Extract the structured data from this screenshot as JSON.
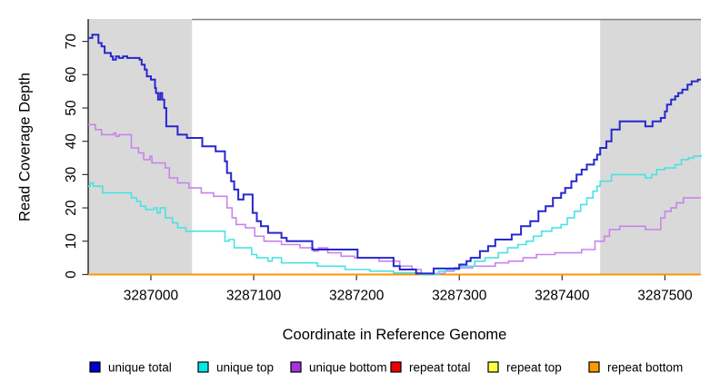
{
  "chart_data": {
    "type": "line",
    "subtype": "step-after",
    "title": "",
    "xlabel": "Coordinate in Reference Genome",
    "ylabel": "Read Coverage Depth",
    "xlim": [
      3286939,
      3287535
    ],
    "ylim": [
      0,
      76.7
    ],
    "x_ticks": [
      3287000,
      3287100,
      3287200,
      3287300,
      3287400,
      3287500
    ],
    "y_ticks": [
      0,
      10,
      20,
      30,
      40,
      50,
      60,
      70
    ],
    "grid": false,
    "legend_position": "bottom",
    "background_color": "#ffffff",
    "shaded_region_color": "#d9d9d9",
    "shaded_regions": [
      {
        "x1": 3286939,
        "x2": 3287040
      },
      {
        "x1": 3287437,
        "x2": 3287535
      }
    ],
    "top_border_segment": {
      "x1": 3287040,
      "x2": 3287535,
      "color": "#7f7f7f"
    },
    "series": [
      {
        "name": "repeat total",
        "color": "#ee0000",
        "legend_color": "#ee0000",
        "width": 1.6,
        "points": [
          [
            3286939,
            0
          ],
          [
            3287535,
            0
          ]
        ]
      },
      {
        "name": "repeat top",
        "color": "#ffee00",
        "legend_color": "#ffff44",
        "width": 1.6,
        "points": [
          [
            3286939,
            0
          ],
          [
            3287535,
            0
          ]
        ]
      },
      {
        "name": "repeat bottom",
        "color": "#ff9300",
        "legend_color": "#ff9900",
        "width": 1.8,
        "points": [
          [
            3286939,
            0
          ],
          [
            3287535,
            0
          ]
        ]
      },
      {
        "name": "unique bottom",
        "color": "#c884ec",
        "legend_color": "#a832dd",
        "width": 1.6,
        "points": [
          [
            3286939,
            45
          ],
          [
            3286946,
            43.5
          ],
          [
            3286952,
            42
          ],
          [
            3286964,
            42.5
          ],
          [
            3286966,
            41.5
          ],
          [
            3286969,
            42
          ],
          [
            3286981,
            38
          ],
          [
            3286988,
            36.5
          ],
          [
            3286993,
            34.5
          ],
          [
            3286999,
            35.5
          ],
          [
            3287001,
            33.5
          ],
          [
            3287014,
            32
          ],
          [
            3287018,
            29
          ],
          [
            3287026,
            27.5
          ],
          [
            3287037,
            26
          ],
          [
            3287049,
            24.5
          ],
          [
            3287061,
            23.5
          ],
          [
            3287074,
            20
          ],
          [
            3287079,
            17
          ],
          [
            3287083,
            15
          ],
          [
            3287092,
            14
          ],
          [
            3287101,
            11.5
          ],
          [
            3287110,
            10
          ],
          [
            3287127,
            9
          ],
          [
            3287145,
            8
          ],
          [
            3287158,
            7
          ],
          [
            3287163,
            8
          ],
          [
            3287172,
            6.5
          ],
          [
            3287185,
            5.5
          ],
          [
            3287198,
            5
          ],
          [
            3287222,
            4
          ],
          [
            3287242,
            2.5
          ],
          [
            3287254,
            1.5
          ],
          [
            3287263,
            0.3
          ],
          [
            3287286,
            1
          ],
          [
            3287295,
            2
          ],
          [
            3287313,
            2.5
          ],
          [
            3287335,
            3.5
          ],
          [
            3287348,
            4
          ],
          [
            3287362,
            5
          ],
          [
            3287375,
            6
          ],
          [
            3287393,
            6.5
          ],
          [
            3287419,
            7.5
          ],
          [
            3287432,
            10
          ],
          [
            3287441,
            11.5
          ],
          [
            3287446,
            13.5
          ],
          [
            3287456,
            14.5
          ],
          [
            3287481,
            13.5
          ],
          [
            3287496,
            17
          ],
          [
            3287500,
            19
          ],
          [
            3287506,
            20
          ],
          [
            3287511,
            21.5
          ],
          [
            3287518,
            23
          ],
          [
            3287535,
            23
          ]
        ]
      },
      {
        "name": "unique top",
        "color": "#4ae2e2",
        "legend_color": "#00e8e8",
        "width": 1.6,
        "points": [
          [
            3286939,
            26.5
          ],
          [
            3286941,
            27.5
          ],
          [
            3286944,
            26.5
          ],
          [
            3286953,
            24.5
          ],
          [
            3286981,
            23
          ],
          [
            3286986,
            22
          ],
          [
            3286990,
            20.5
          ],
          [
            3286995,
            19.5
          ],
          [
            3287003,
            20
          ],
          [
            3287006,
            18.5
          ],
          [
            3287009,
            20
          ],
          [
            3287014,
            17
          ],
          [
            3287021,
            15.5
          ],
          [
            3287026,
            14
          ],
          [
            3287034,
            13
          ],
          [
            3287072,
            10
          ],
          [
            3287076,
            10.5
          ],
          [
            3287081,
            8
          ],
          [
            3287098,
            6
          ],
          [
            3287103,
            5
          ],
          [
            3287114,
            4
          ],
          [
            3287118,
            5
          ],
          [
            3287127,
            3.5
          ],
          [
            3287162,
            2.5
          ],
          [
            3287189,
            1.5
          ],
          [
            3287213,
            1
          ],
          [
            3287236,
            0.5
          ],
          [
            3287262,
            0
          ],
          [
            3287280,
            1
          ],
          [
            3287287,
            1.5
          ],
          [
            3287300,
            2.5
          ],
          [
            3287315,
            4
          ],
          [
            3287325,
            5
          ],
          [
            3287338,
            6.5
          ],
          [
            3287347,
            8
          ],
          [
            3287357,
            9
          ],
          [
            3287365,
            10
          ],
          [
            3287372,
            11.5
          ],
          [
            3287380,
            13
          ],
          [
            3287390,
            14
          ],
          [
            3287399,
            15
          ],
          [
            3287405,
            17
          ],
          [
            3287412,
            19
          ],
          [
            3287418,
            21
          ],
          [
            3287424,
            23
          ],
          [
            3287430,
            25
          ],
          [
            3287434,
            26.5
          ],
          [
            3287437,
            28
          ],
          [
            3287448,
            30
          ],
          [
            3287481,
            29
          ],
          [
            3287487,
            30
          ],
          [
            3287492,
            31.5
          ],
          [
            3287500,
            32
          ],
          [
            3287510,
            33
          ],
          [
            3287516,
            34.5
          ],
          [
            3287523,
            35
          ],
          [
            3287528,
            35.5
          ],
          [
            3287535,
            36
          ]
        ]
      },
      {
        "name": "unique total",
        "color": "#2727cf",
        "legend_color": "#0000cc",
        "width": 2,
        "points": [
          [
            3286939,
            71
          ],
          [
            3286943,
            72
          ],
          [
            3286949,
            69.5
          ],
          [
            3286952,
            68.5
          ],
          [
            3286955,
            66.5
          ],
          [
            3286961,
            65.5
          ],
          [
            3286963,
            64.5
          ],
          [
            3286966,
            65.5
          ],
          [
            3286969,
            65
          ],
          [
            3286973,
            65.5
          ],
          [
            3286977,
            65
          ],
          [
            3286989,
            64.5
          ],
          [
            3286991,
            63
          ],
          [
            3286994,
            61.5
          ],
          [
            3286996,
            59.5
          ],
          [
            3287000,
            58.5
          ],
          [
            3287004,
            56
          ],
          [
            3287005,
            54.5
          ],
          [
            3287007,
            52.5
          ],
          [
            3287009,
            54.5
          ],
          [
            3287011,
            52.5
          ],
          [
            3287013,
            50
          ],
          [
            3287015,
            44.5
          ],
          [
            3287026,
            42
          ],
          [
            3287035,
            41
          ],
          [
            3287050,
            38.5
          ],
          [
            3287063,
            37
          ],
          [
            3287072,
            34
          ],
          [
            3287074,
            30.5
          ],
          [
            3287078,
            28
          ],
          [
            3287081,
            25.5
          ],
          [
            3287085,
            22.5
          ],
          [
            3287090,
            24
          ],
          [
            3287099,
            18.5
          ],
          [
            3287103,
            16
          ],
          [
            3287107,
            14.5
          ],
          [
            3287114,
            12.5
          ],
          [
            3287127,
            11
          ],
          [
            3287132,
            10
          ],
          [
            3287157,
            7.5
          ],
          [
            3287201,
            5
          ],
          [
            3287236,
            2.5
          ],
          [
            3287242,
            1.5
          ],
          [
            3287258,
            0.3
          ],
          [
            3287275,
            1.8
          ],
          [
            3287300,
            3
          ],
          [
            3287307,
            4
          ],
          [
            3287311,
            5
          ],
          [
            3287320,
            7
          ],
          [
            3287328,
            8.5
          ],
          [
            3287335,
            10.5
          ],
          [
            3287351,
            12
          ],
          [
            3287360,
            14.5
          ],
          [
            3287369,
            16
          ],
          [
            3287377,
            19
          ],
          [
            3287384,
            20.5
          ],
          [
            3287391,
            23
          ],
          [
            3287399,
            24.5
          ],
          [
            3287403,
            26
          ],
          [
            3287409,
            28
          ],
          [
            3287414,
            30
          ],
          [
            3287419,
            31.5
          ],
          [
            3287424,
            33
          ],
          [
            3287431,
            34.5
          ],
          [
            3287434,
            36
          ],
          [
            3287437,
            38
          ],
          [
            3287443,
            40
          ],
          [
            3287448,
            43.5
          ],
          [
            3287456,
            46
          ],
          [
            3287481,
            44.5
          ],
          [
            3287488,
            46
          ],
          [
            3287496,
            47
          ],
          [
            3287500,
            49
          ],
          [
            3287502,
            51
          ],
          [
            3287506,
            52.5
          ],
          [
            3287510,
            53.5
          ],
          [
            3287513,
            54.5
          ],
          [
            3287517,
            55.5
          ],
          [
            3287522,
            57
          ],
          [
            3287526,
            58
          ],
          [
            3287532,
            58.5
          ],
          [
            3287535,
            58.5
          ]
        ]
      }
    ],
    "legend": {
      "items": [
        {
          "label": "unique total",
          "color": "#0000cc"
        },
        {
          "label": "unique top",
          "color": "#00e8e8"
        },
        {
          "label": "unique bottom",
          "color": "#a832dd"
        },
        {
          "label": "repeat total",
          "color": "#ee0000"
        },
        {
          "label": "repeat top",
          "color": "#ffff44"
        },
        {
          "label": "repeat bottom",
          "color": "#ff9900"
        }
      ]
    }
  }
}
